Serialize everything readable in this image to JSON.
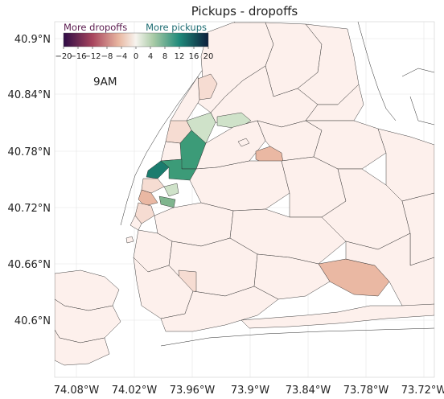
{
  "title": "Pickups - dropoffs",
  "hour_label": "9AM",
  "colorbar": {
    "left_label": "More dropoffs",
    "right_label": "More pickups",
    "ticks": [
      "−20",
      "−16",
      "−12",
      "−8",
      "−4",
      "0",
      "4",
      "8",
      "12",
      "16",
      "20"
    ],
    "min": -20,
    "max": 20,
    "colors": {
      "low": "#2d0b45",
      "mid_low": "#a8455e",
      "low_light": "#e8b6a0",
      "neutral": "#f7f4ef",
      "high_light": "#a9cba6",
      "mid_high": "#1f8a7a",
      "high": "#0c1f3c"
    },
    "left_label_color": "#5a1a4e",
    "right_label_color": "#1d6c72"
  },
  "axes": {
    "x_ticks": [
      "74.08°W",
      "74.02°W",
      "73.96°W",
      "73.9°W",
      "73.84°W",
      "73.78°W",
      "73.72°W"
    ],
    "y_ticks": [
      "40.9°N",
      "40.84°N",
      "40.78°N",
      "40.72°N",
      "40.66°N",
      "40.6°N"
    ],
    "grid": true
  },
  "zone_colors": {
    "baseline": "#fdf0ec",
    "light_pink": "#f6dcd2",
    "salmon": "#eab8a3",
    "strong_green": "#3c9b78",
    "teal": "#1b7c6e",
    "pale_green": "#cfe2c9",
    "mid_green": "#7fb58e"
  }
}
